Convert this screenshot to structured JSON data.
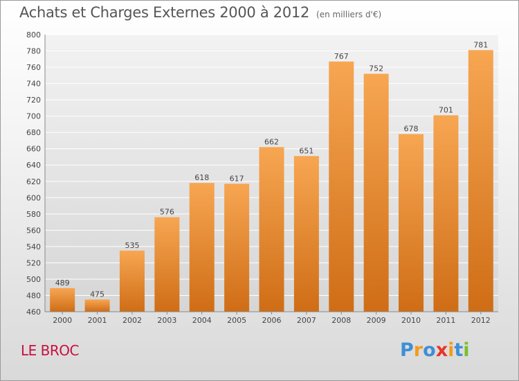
{
  "title": "Achats et Charges Externes 2000 à 2012",
  "unit_note": "(en milliers d'€)",
  "commune": "LE BROC",
  "logo": {
    "text": "Proxiti",
    "colors": [
      "#3d8fd6",
      "#f39a1e",
      "#3d8fd6",
      "#e8342a",
      "#f39a1e",
      "#3d8fd6",
      "#7bbf2a"
    ]
  },
  "colors": {
    "bar_light": "#f7a652",
    "bar_dark": "#cf6d16",
    "grid": "#ffffff",
    "commune": "#c8103f"
  },
  "chart_data": {
    "type": "bar",
    "categories": [
      "2000",
      "2001",
      "2002",
      "2003",
      "2004",
      "2005",
      "2006",
      "2007",
      "2008",
      "2009",
      "2010",
      "2011",
      "2012"
    ],
    "values": [
      489,
      475,
      535,
      576,
      618,
      617,
      662,
      651,
      767,
      752,
      678,
      701,
      781
    ],
    "ylim": [
      460,
      800
    ],
    "yticks": [
      460,
      480,
      500,
      520,
      540,
      560,
      580,
      600,
      620,
      640,
      660,
      680,
      700,
      720,
      740,
      760,
      780,
      800
    ],
    "grid": true,
    "data_labels": true
  }
}
